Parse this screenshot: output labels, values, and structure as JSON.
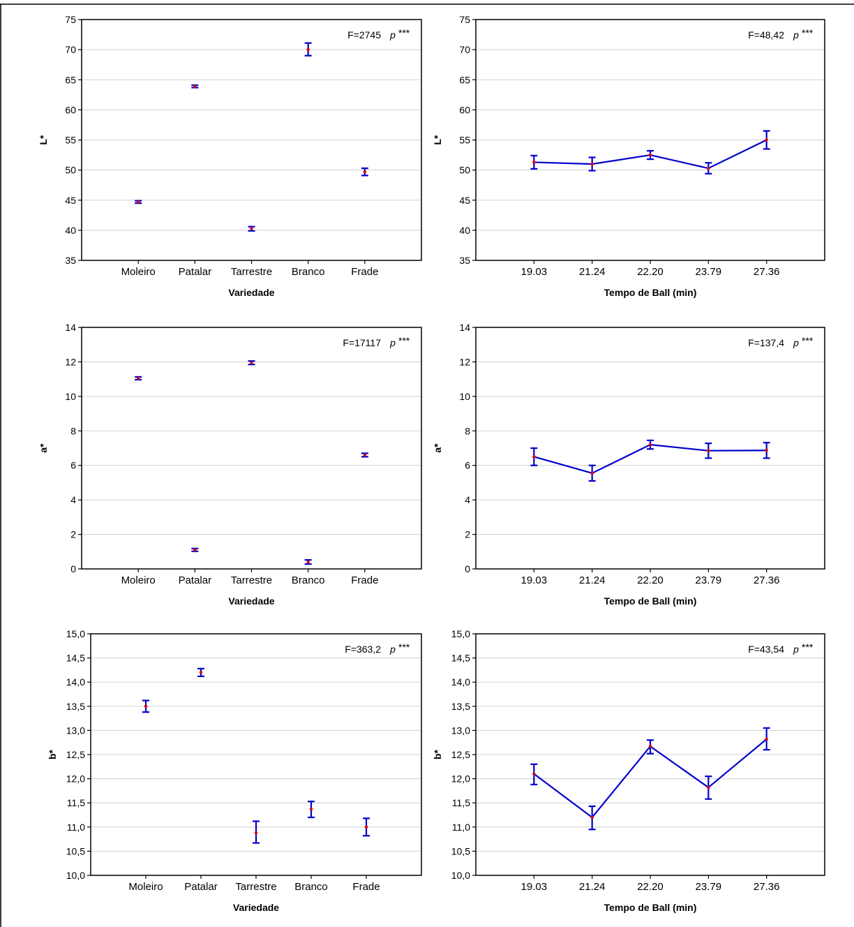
{
  "chart_data": [
    {
      "type": "scatter",
      "title": "",
      "xlabel": "Variedade",
      "ylabel": "L*",
      "categories": [
        "Moleiro",
        "Patalar",
        "Tarrestre",
        "Branco",
        "Frade"
      ],
      "values": [
        44.7,
        63.9,
        40.3,
        70.0,
        49.7
      ],
      "error_low": [
        44.5,
        63.7,
        39.9,
        69.0,
        49.1
      ],
      "error_high": [
        44.9,
        64.1,
        40.6,
        71.1,
        50.3
      ],
      "ylim": [
        35,
        75
      ],
      "yticks": [
        "35",
        "40",
        "45",
        "50",
        "55",
        "60",
        "65",
        "70",
        "75"
      ],
      "connected": false,
      "stat_text": "F=2745",
      "stat_p": "p",
      "stat_sig": "***",
      "colors": {
        "line": "#0000cc",
        "point": "#dd0000"
      }
    },
    {
      "type": "line",
      "title": "",
      "xlabel": "Tempo de Ball (min)",
      "ylabel": "L*",
      "categories": [
        "19.03",
        "21.24",
        "22.20",
        "23.79",
        "27.36"
      ],
      "values": [
        51.3,
        51.0,
        52.5,
        50.3,
        55.0
      ],
      "error_low": [
        50.2,
        49.9,
        51.8,
        49.4,
        53.5
      ],
      "error_high": [
        52.4,
        52.1,
        53.2,
        51.2,
        56.5
      ],
      "ylim": [
        35,
        75
      ],
      "yticks": [
        "35",
        "40",
        "45",
        "50",
        "55",
        "60",
        "65",
        "70",
        "75"
      ],
      "connected": true,
      "stat_text": "F=48,42",
      "stat_p": "p",
      "stat_sig": "***",
      "colors": {
        "line": "#0000cc",
        "point": "#dd0000"
      }
    },
    {
      "type": "scatter",
      "title": "",
      "xlabel": "Variedade",
      "ylabel": "a*",
      "categories": [
        "Moleiro",
        "Patalar",
        "Tarrestre",
        "Branco",
        "Frade"
      ],
      "values": [
        11.05,
        1.1,
        11.95,
        0.4,
        6.6
      ],
      "error_low": [
        10.97,
        1.02,
        11.85,
        0.28,
        6.5
      ],
      "error_high": [
        11.13,
        1.18,
        12.05,
        0.52,
        6.7
      ],
      "ylim": [
        0,
        14
      ],
      "yticks": [
        "0",
        "2",
        "4",
        "6",
        "8",
        "10",
        "12",
        "14"
      ],
      "connected": false,
      "stat_text": "F=17117",
      "stat_p": "p",
      "stat_sig": "***",
      "colors": {
        "line": "#0000cc",
        "point": "#dd0000"
      }
    },
    {
      "type": "line",
      "title": "",
      "xlabel": "Tempo de Ball (min)",
      "ylabel": "a*",
      "categories": [
        "19.03",
        "21.24",
        "22.20",
        "23.79",
        "27.36"
      ],
      "values": [
        6.5,
        5.55,
        7.2,
        6.85,
        6.87
      ],
      "error_low": [
        6.0,
        5.1,
        6.95,
        6.42,
        6.42
      ],
      "error_high": [
        7.0,
        6.0,
        7.45,
        7.28,
        7.32
      ],
      "ylim": [
        0,
        14
      ],
      "yticks": [
        "0",
        "2",
        "4",
        "6",
        "8",
        "10",
        "12",
        "14"
      ],
      "connected": true,
      "stat_text": "F=137,4",
      "stat_p": "p",
      "stat_sig": "***",
      "colors": {
        "line": "#0000cc",
        "point": "#dd0000"
      }
    },
    {
      "type": "scatter",
      "title": "",
      "xlabel": "Variedade",
      "ylabel": "b*",
      "categories": [
        "Moleiro",
        "Patalar",
        "Tarrestre",
        "Branco",
        "Frade"
      ],
      "values": [
        13.5,
        14.2,
        10.88,
        11.37,
        11.0
      ],
      "error_low": [
        13.38,
        14.12,
        10.67,
        11.2,
        10.82
      ],
      "error_high": [
        13.62,
        14.28,
        11.12,
        11.53,
        11.18
      ],
      "ylim": [
        10,
        15
      ],
      "yticks": [
        "10,0",
        "10,5",
        "11,0",
        "11,5",
        "12,0",
        "12,5",
        "13,0",
        "13,5",
        "14,0",
        "14,5",
        "15,0"
      ],
      "connected": false,
      "stat_text": "F=363,2",
      "stat_p": "p",
      "stat_sig": "***",
      "colors": {
        "line": "#0000cc",
        "point": "#dd0000"
      }
    },
    {
      "type": "line",
      "title": "",
      "xlabel": "Tempo de Ball (min)",
      "ylabel": "b*",
      "categories": [
        "19.03",
        "21.24",
        "22.20",
        "23.79",
        "27.36"
      ],
      "values": [
        12.1,
        11.2,
        12.67,
        11.82,
        12.82
      ],
      "error_low": [
        11.88,
        10.95,
        12.52,
        11.58,
        12.6
      ],
      "error_high": [
        12.3,
        11.43,
        12.8,
        12.05,
        13.05
      ],
      "ylim": [
        10,
        15
      ],
      "yticks": [
        "10,0",
        "10,5",
        "11,0",
        "11,5",
        "12,0",
        "12,5",
        "13,0",
        "13,5",
        "14,0",
        "14,5",
        "15,0"
      ],
      "connected": true,
      "stat_text": "F=43,54",
      "stat_p": "p",
      "stat_sig": "***",
      "colors": {
        "line": "#0000cc",
        "point": "#dd0000"
      }
    }
  ]
}
